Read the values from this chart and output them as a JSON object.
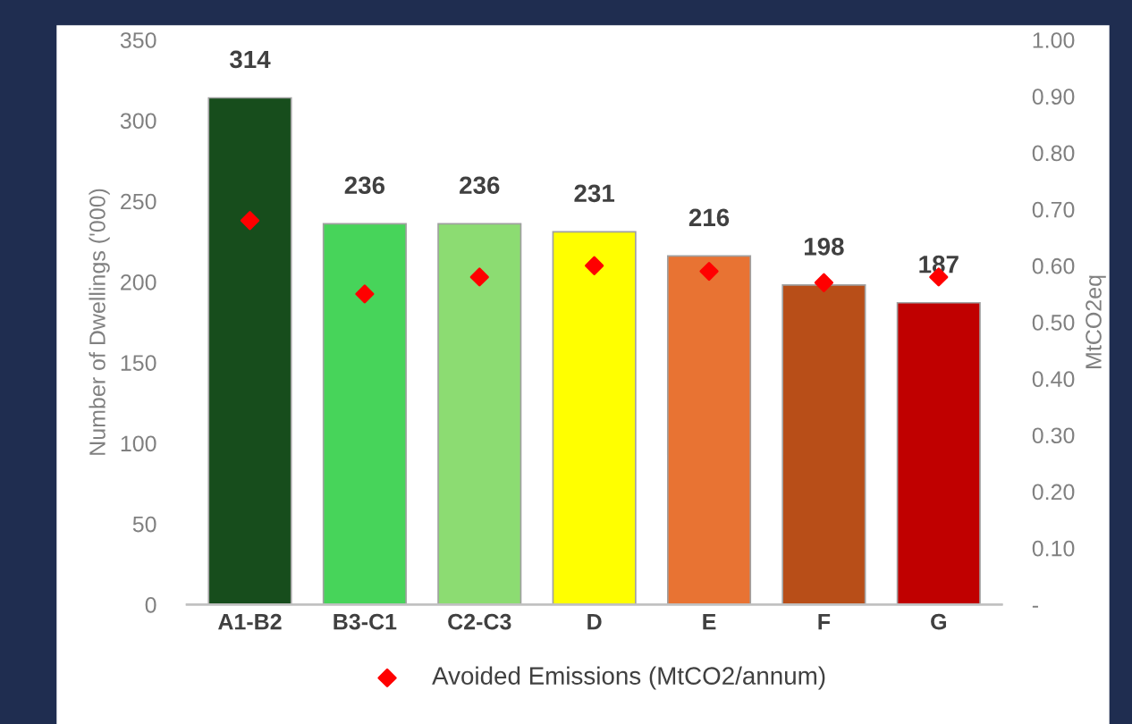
{
  "chart_data": {
    "type": "bar",
    "categories": [
      "A1-B2",
      "B3-C1",
      "C2-C3",
      "D",
      "E",
      "F",
      "G"
    ],
    "ylabel": "Number of Dwellings ('000)",
    "y2label": "MtCO2eq",
    "series": [
      {
        "colors": [
          "#174d1c",
          "#47d45a",
          "#8cdc72",
          "#ffff00",
          "#e87333",
          "#b84e18",
          "#c00000"
        ],
        "values": [
          314,
          236,
          236,
          231,
          216,
          198,
          187
        ],
        "data_labels": true
      },
      {
        "type": "scatter",
        "name": "Avoided Emissions (MtCO2/annum)",
        "color": "#ff0000",
        "axis": "y2",
        "marker": "diamond",
        "values": [
          0.68,
          0.55,
          0.58,
          0.6,
          0.59,
          0.57,
          0.58
        ]
      }
    ],
    "ylim": [
      0,
      350
    ],
    "yticks": [
      0,
      50,
      100,
      150,
      200,
      250,
      300,
      350
    ],
    "y2lim": [
      0,
      1.0
    ],
    "y2ticks": [
      {
        "value": 0,
        "label": "-"
      },
      {
        "value": 0.1,
        "label": "0.10"
      },
      {
        "value": 0.2,
        "label": "0.20"
      },
      {
        "value": 0.3,
        "label": "0.30"
      },
      {
        "value": 0.4,
        "label": "0.40"
      },
      {
        "value": 0.5,
        "label": "0.50"
      },
      {
        "value": 0.6,
        "label": "0.60"
      },
      {
        "value": 0.7,
        "label": "0.70"
      },
      {
        "value": 0.8,
        "label": "0.80"
      },
      {
        "value": 0.9,
        "label": "0.90"
      },
      {
        "value": 1.0,
        "label": "1.00"
      }
    ],
    "grid": false,
    "legend": "bottom"
  }
}
